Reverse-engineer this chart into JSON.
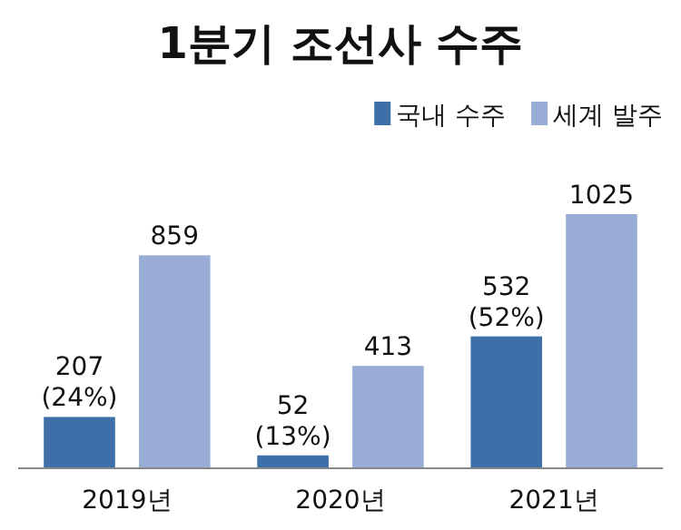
{
  "chart_data": {
    "type": "bar",
    "title": "1분기 조선사 수주",
    "categories": [
      "2019년",
      "2020년",
      "2021년"
    ],
    "series": [
      {
        "name": "국내 수주",
        "color": "#3e6fa8",
        "values": [
          207,
          52,
          532
        ],
        "value_labels": [
          "207 (24%)",
          "52 (13%)",
          "532 (52%)"
        ]
      },
      {
        "name": "세계 발주",
        "color": "#98acd6",
        "values": [
          859,
          413,
          1025
        ],
        "value_labels": [
          "859",
          "413",
          "1025"
        ]
      }
    ],
    "legend": "top right"
  }
}
